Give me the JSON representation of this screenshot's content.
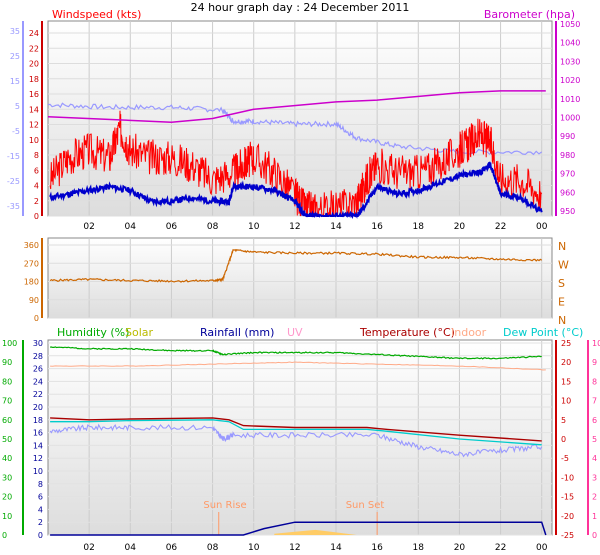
{
  "colors": {
    "windspeed": "#ff0000",
    "avg_wind": "#0000cc",
    "barometer": "#cc00cc",
    "barometer_label": "#cc00cc",
    "wind_dir": "#cc6600",
    "dir_label": "#cc6600",
    "humidity": "#00aa00",
    "solar": "#bbbb00",
    "rainfall": "#000099",
    "uv": "#ff99cc",
    "temperature": "#aa0000",
    "indoor": "#ffaa88",
    "dewpoint": "#00cccc",
    "sun": "#ff9966",
    "blue_axis": "#9999ff",
    "green_axis": "#00aa00",
    "pink_axis": "#ff3399"
  },
  "chart_data": [
    {
      "type": "line",
      "title": "24 hour graph day : 24 December 2011",
      "left_label": "Windspeed (kts)",
      "right_label": "Barometer (hpa)",
      "x_ticks": [
        "02",
        "04",
        "06",
        "08",
        "10",
        "12",
        "14",
        "16",
        "18",
        "20",
        "22",
        "00"
      ],
      "x_range": [
        0,
        24.5
      ],
      "axis_outer_left": {
        "ticks": [
          "35",
          "25",
          "15",
          "5",
          "-5",
          "-15",
          "-25",
          "-35"
        ],
        "range": [
          -35,
          35
        ]
      },
      "axis_wind": {
        "ticks": [
          "24",
          "22",
          "20",
          "18",
          "16",
          "14",
          "12",
          "10",
          "8",
          "6",
          "4",
          "2",
          "0"
        ],
        "range": [
          0,
          25
        ]
      },
      "axis_baro": {
        "ticks": [
          "1050",
          "1040",
          "1030",
          "1020",
          "1010",
          "1000",
          "990",
          "980",
          "970",
          "960",
          "950"
        ],
        "range": [
          946,
          1052
        ]
      },
      "series": [
        {
          "key": "windspeed",
          "unit": "kts",
          "x": [
            0.1,
            1,
            2,
            3,
            3.5,
            4,
            5,
            6,
            7,
            8,
            9,
            9.5,
            10,
            11,
            12,
            12.5,
            13,
            14,
            15,
            15.5,
            16,
            17,
            18,
            19,
            20,
            20.5,
            21,
            21.5,
            22,
            23,
            24
          ],
          "y": [
            5,
            8,
            9,
            8,
            12,
            9,
            8,
            8,
            7,
            5,
            6,
            7,
            8,
            6,
            3,
            1,
            1,
            1,
            2,
            5,
            7,
            6,
            6,
            7,
            9,
            10,
            11,
            10,
            5,
            5,
            3
          ]
        },
        {
          "key": "avg_wind",
          "unit": "kts",
          "x": [
            0.1,
            1,
            2,
            3,
            4,
            5,
            6,
            7,
            8,
            8.8,
            9,
            10,
            11,
            12,
            12.5,
            13,
            14,
            15,
            15.3,
            16,
            17,
            18,
            19,
            20,
            21,
            21.5,
            22,
            23,
            24
          ],
          "y": [
            2.5,
            3,
            3.5,
            4,
            3.5,
            2,
            2,
            2.5,
            2,
            2,
            4,
            4,
            3.5,
            2,
            0,
            0,
            0,
            0,
            1,
            4,
            3,
            3.5,
            4.5,
            5.5,
            6,
            7,
            3,
            2.5,
            0.5
          ]
        },
        {
          "key": "barometer",
          "unit": "hpa",
          "x": [
            0,
            6,
            8,
            10,
            14,
            16,
            20,
            22,
            24.2
          ],
          "y": [
            1000,
            997,
            999,
            1004,
            1008,
            1009,
            1013,
            1014,
            1014
          ]
        },
        {
          "key": "temp_blue",
          "unit": "°C",
          "x": [
            0,
            3,
            6,
            8.5,
            9,
            10,
            12,
            14,
            15,
            17,
            20,
            24
          ],
          "y": [
            5,
            4,
            4,
            3,
            -1,
            -1,
            -2,
            -2,
            -7,
            -10,
            -12,
            -12
          ]
        }
      ]
    },
    {
      "type": "line",
      "axis_dir": {
        "ticks": [
          "360",
          "270",
          "180",
          "90",
          "0"
        ],
        "range": [
          0,
          360
        ]
      },
      "right_labels": [
        "N",
        "W",
        "S",
        "E",
        "N"
      ],
      "series": [
        {
          "key": "wind_dir",
          "unit": "deg",
          "x": [
            0.1,
            2,
            4,
            6,
            8,
            8.5,
            9,
            10,
            12,
            14,
            16,
            18,
            20,
            22,
            24
          ],
          "y": [
            185,
            190,
            185,
            182,
            184,
            190,
            335,
            325,
            320,
            320,
            315,
            300,
            298,
            290,
            285
          ]
        }
      ]
    },
    {
      "type": "line",
      "labels": [
        "Humidity (%)",
        "Solar",
        "Rainfall (mm)",
        "UV",
        "Temperature (°C)",
        "Indoor",
        "Dew Point (°C)"
      ],
      "axis_humidity": {
        "ticks": [
          "100",
          "90",
          "80",
          "70",
          "60",
          "50",
          "40",
          "30",
          "20",
          "10",
          "0"
        ],
        "range": [
          0,
          100
        ]
      },
      "axis_solar": {
        "ticks": [
          "30",
          "28",
          "26",
          "24",
          "22",
          "20",
          "18",
          "16",
          "14",
          "12",
          "10",
          "8",
          "6",
          "4",
          "2",
          "0"
        ],
        "range": [
          0,
          30
        ]
      },
      "axis_temp": {
        "ticks": [
          "25",
          "20",
          "15",
          "10",
          "5",
          "0",
          "-5",
          "-10",
          "-15",
          "-20",
          "-25"
        ],
        "range": [
          -25,
          25
        ]
      },
      "axis_uv": {
        "ticks": [
          "10",
          "9",
          "8",
          "7",
          "6",
          "5",
          "4",
          "3",
          "2",
          "1",
          "0"
        ],
        "range": [
          0,
          10
        ]
      },
      "annotations": [
        "Sun Rise",
        "Sun Set"
      ],
      "sunrise_hour": 8.3,
      "sunset_hour": 16.0,
      "series": [
        {
          "key": "humidity",
          "unit": "%",
          "x": [
            0.1,
            2,
            4,
            6,
            8,
            8.5,
            10,
            12,
            14,
            16,
            18,
            20,
            22,
            24
          ],
          "y": [
            98,
            97,
            97,
            96,
            96,
            94,
            95,
            95,
            95,
            94,
            93,
            92,
            92,
            93
          ]
        },
        {
          "key": "indoor",
          "unit": "°C",
          "x": [
            0.1,
            4,
            8,
            12,
            16,
            20,
            24.2
          ],
          "y": [
            19,
            19,
            19.5,
            20,
            19.5,
            19,
            18
          ]
        },
        {
          "key": "temperature",
          "unit": "°C",
          "x": [
            0.1,
            2,
            4,
            8,
            8.8,
            9.5,
            12,
            15.5,
            16.5,
            20,
            24
          ],
          "y": [
            5.5,
            5,
            5.2,
            5.5,
            5,
            3.5,
            3,
            3,
            2.5,
            1,
            -0.5
          ]
        },
        {
          "key": "dewpoint",
          "unit": "°C",
          "x": [
            0.1,
            2,
            4,
            8,
            8.8,
            9.5,
            12,
            15.5,
            16.5,
            20,
            24
          ],
          "y": [
            4.5,
            4.5,
            4.8,
            5,
            4.5,
            2.5,
            2.5,
            2.5,
            2,
            0,
            -1.5
          ]
        },
        {
          "key": "humidity_blue",
          "unit": "°C",
          "x": [
            0.1,
            2,
            4,
            8,
            8.5,
            9,
            12,
            16,
            18,
            20,
            22,
            24
          ],
          "y": [
            2,
            3,
            3,
            3,
            0,
            1,
            1,
            1,
            -2,
            -4,
            -3,
            -2
          ]
        },
        {
          "key": "rainfall",
          "unit": "mm",
          "x": [
            0.1,
            8.3,
            9.5,
            10,
            10.5,
            12,
            13,
            14,
            16,
            20,
            24,
            24.2
          ],
          "y": [
            0,
            0,
            0,
            0.5,
            1,
            2,
            2,
            2,
            2,
            2,
            2,
            0
          ]
        },
        {
          "key": "solar",
          "unit": "W/m²",
          "x": [
            11,
            12,
            13,
            14,
            15
          ],
          "y": [
            0.2,
            0.5,
            0.8,
            0.4,
            0
          ]
        }
      ]
    }
  ]
}
